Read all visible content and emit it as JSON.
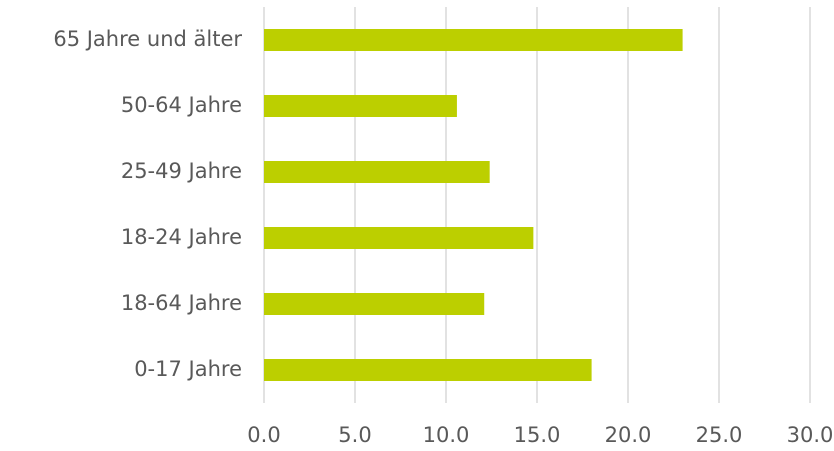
{
  "chart_data": {
    "type": "hbar",
    "categories": [
      "65 Jahre und älter",
      "50-64 Jahre",
      "25-49 Jahre",
      "18-24 Jahre",
      "18-64 Jahre",
      "0-17 Jahre"
    ],
    "values": [
      23.0,
      10.6,
      12.4,
      14.8,
      12.1,
      18.0
    ],
    "color": "#bccf00",
    "xlim": [
      0,
      30
    ],
    "xticks": [
      {
        "value": 0,
        "label": "0.0"
      },
      {
        "value": 5,
        "label": "5.0"
      },
      {
        "value": 10,
        "label": "10.0"
      },
      {
        "value": 15,
        "label": "15.0"
      },
      {
        "value": 20,
        "label": "20.0"
      },
      {
        "value": 25,
        "label": "25.0"
      },
      {
        "value": 30,
        "label": "30.0"
      }
    ],
    "grid": true
  }
}
